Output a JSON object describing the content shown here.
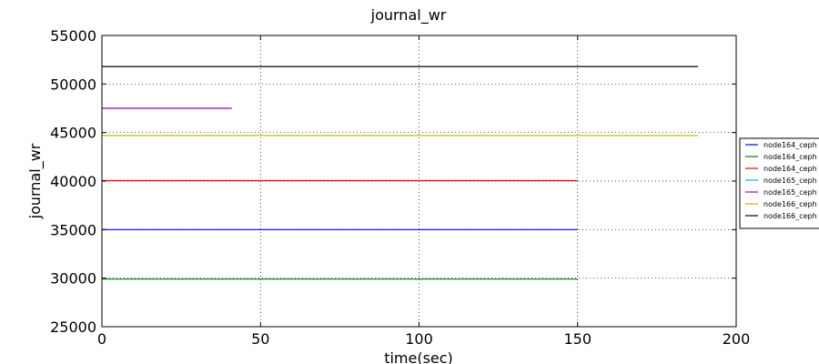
{
  "chart_data": {
    "type": "line",
    "title": "journal_wr",
    "xlabel": "time(sec)",
    "ylabel": "journal_wr",
    "xlim": [
      0,
      200
    ],
    "ylim": [
      25000,
      55000
    ],
    "xticks": [
      0,
      50,
      100,
      150,
      200
    ],
    "yticks": [
      25000,
      30000,
      35000,
      40000,
      45000,
      50000,
      55000
    ],
    "grid": true,
    "legend_position": "right",
    "series": [
      {
        "name": "node164_ceph",
        "color": "#0000ff",
        "x": [
          0,
          150
        ],
        "y": [
          35000,
          35000
        ]
      },
      {
        "name": "node164_ceph",
        "color": "#008000",
        "x": [
          0,
          150
        ],
        "y": [
          29900,
          29900
        ]
      },
      {
        "name": "node164_ceph",
        "color": "#ff0000",
        "x": [
          0,
          150
        ],
        "y": [
          40050,
          40050
        ]
      },
      {
        "name": "node165_ceph",
        "color": "#00bfbf",
        "x": [
          0,
          40
        ],
        "y": [
          47500,
          47500
        ]
      },
      {
        "name": "node165_ceph",
        "color": "#bf00bf",
        "x": [
          0,
          41
        ],
        "y": [
          47500,
          47500
        ]
      },
      {
        "name": "node166_ceph",
        "color": "#bfbf00",
        "x": [
          0,
          188
        ],
        "y": [
          44700,
          44700
        ]
      },
      {
        "name": "node166_ceph",
        "color": "#000000",
        "x": [
          0,
          188
        ],
        "y": [
          51800,
          51800
        ]
      }
    ]
  }
}
